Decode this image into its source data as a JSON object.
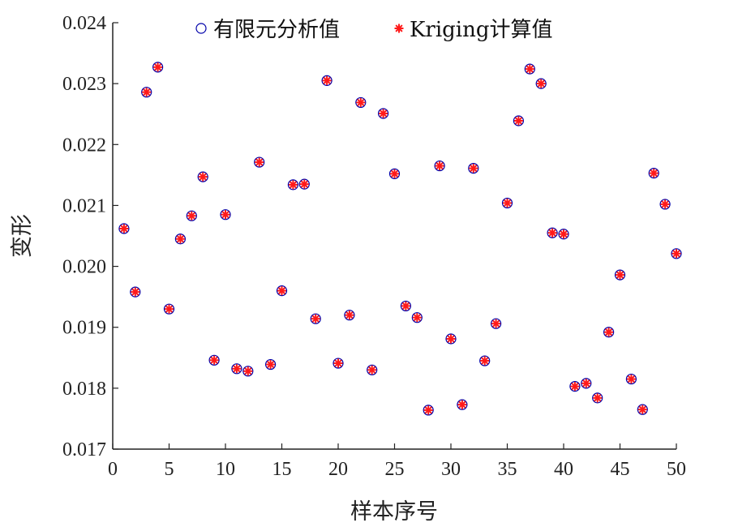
{
  "chart_data": {
    "type": "scatter",
    "title": "",
    "xlabel": "样本序号",
    "ylabel": "变形",
    "xlim": [
      0,
      50
    ],
    "ylim": [
      0.017,
      0.024
    ],
    "xticks": [
      0,
      5,
      10,
      15,
      20,
      25,
      30,
      35,
      40,
      45,
      50
    ],
    "xtick_labels": [
      "0",
      "5",
      "10",
      "15",
      "20",
      "25",
      "30",
      "35",
      "40",
      "45",
      "50"
    ],
    "yticks": [
      0.017,
      0.018,
      0.019,
      0.02,
      0.021,
      0.022,
      0.023,
      0.024
    ],
    "ytick_labels": [
      "0.017",
      "0.018",
      "0.019",
      "0.020",
      "0.021",
      "0.022",
      "0.023",
      "0.024"
    ],
    "grid": false,
    "legend_position": "top",
    "x": [
      1,
      2,
      3,
      4,
      5,
      6,
      7,
      8,
      9,
      10,
      11,
      12,
      13,
      14,
      15,
      16,
      17,
      18,
      19,
      20,
      21,
      22,
      23,
      24,
      25,
      26,
      27,
      28,
      29,
      30,
      31,
      32,
      33,
      34,
      35,
      36,
      37,
      38,
      39,
      40,
      41,
      42,
      43,
      44,
      45,
      46,
      47,
      48,
      49,
      50
    ],
    "series": [
      {
        "name": "有限元分析值",
        "marker": "circle",
        "color": "#0000aa",
        "values": [
          0.02062,
          0.01958,
          0.02286,
          0.02327,
          0.0193,
          0.02045,
          0.02083,
          0.02147,
          0.01846,
          0.02085,
          0.01832,
          0.01828,
          0.02171,
          0.01839,
          0.0196,
          0.02134,
          0.02135,
          0.01914,
          0.02305,
          0.01841,
          0.0192,
          0.02269,
          0.0183,
          0.02251,
          0.02152,
          0.01935,
          0.01916,
          0.01764,
          0.02165,
          0.01881,
          0.01773,
          0.02161,
          0.01845,
          0.01906,
          0.02104,
          0.02239,
          0.02324,
          0.023,
          0.02055,
          0.02053,
          0.01803,
          0.01808,
          0.01784,
          0.01892,
          0.01986,
          0.01815,
          0.01765,
          0.02153,
          0.02102,
          0.02021
        ]
      },
      {
        "name": "Kriging计算值",
        "marker": "asterisk",
        "color": "#ff1a1a",
        "values": [
          0.02062,
          0.01958,
          0.02286,
          0.02327,
          0.0193,
          0.02045,
          0.02083,
          0.02147,
          0.01846,
          0.02085,
          0.01832,
          0.01828,
          0.02171,
          0.01839,
          0.0196,
          0.02134,
          0.02135,
          0.01914,
          0.02305,
          0.01841,
          0.0192,
          0.02269,
          0.0183,
          0.02251,
          0.02152,
          0.01935,
          0.01916,
          0.01764,
          0.02165,
          0.01881,
          0.01773,
          0.02161,
          0.01845,
          0.01906,
          0.02104,
          0.02239,
          0.02324,
          0.023,
          0.02055,
          0.02053,
          0.01803,
          0.01808,
          0.01784,
          0.01892,
          0.01986,
          0.01815,
          0.01765,
          0.02153,
          0.02102,
          0.02021
        ]
      }
    ]
  }
}
